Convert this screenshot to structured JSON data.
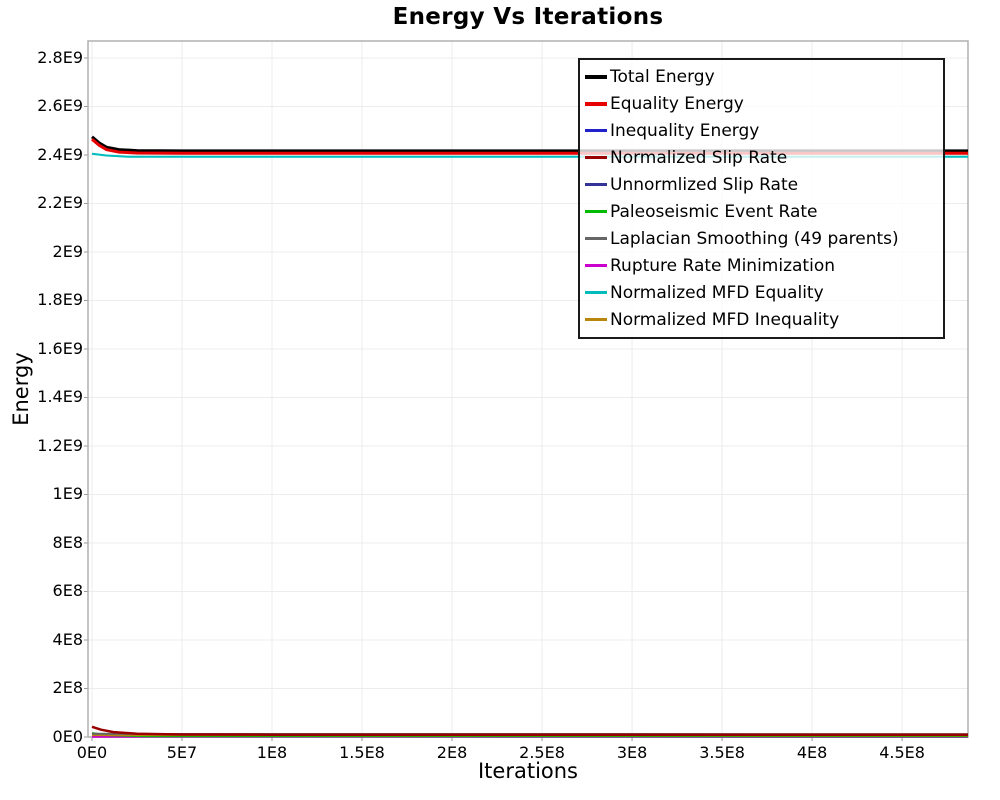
{
  "title": "Energy Vs Iterations",
  "x_axis": {
    "label": "Iterations"
  },
  "y_axis": {
    "label": "Energy"
  },
  "chart_data": {
    "type": "line",
    "title": "Energy Vs Iterations",
    "xlabel": "Iterations",
    "ylabel": "Energy",
    "xlim": [
      -2200000,
      486600000
    ],
    "ylim": [
      0,
      2870000000
    ],
    "grid": true,
    "legend_position": "top-right-inside",
    "legend_background": "rgba(255,255,255,0.78)",
    "x_ticks": {
      "values": [
        0,
        50000000,
        100000000,
        150000000,
        200000000,
        250000000,
        300000000,
        350000000,
        400000000,
        450000000
      ],
      "labels": [
        "0E0",
        "5E7",
        "1E8",
        "1.5E8",
        "2E8",
        "2.5E8",
        "3E8",
        "3.5E8",
        "4E8",
        "4.5E8"
      ]
    },
    "y_ticks": {
      "values": [
        0,
        200000000,
        400000000,
        600000000,
        800000000,
        1000000000,
        1200000000,
        1400000000,
        1600000000,
        1800000000,
        2000000000,
        2200000000,
        2400000000,
        2600000000,
        2800000000
      ],
      "labels": [
        "0E0",
        "2E8",
        "4E8",
        "6E8",
        "8E8",
        "1E9",
        "1.2E9",
        "1.4E9",
        "1.6E9",
        "1.8E9",
        "2E9",
        "2.2E9",
        "2.4E9",
        "2.6E9",
        "2.8E9"
      ]
    },
    "series": [
      {
        "name": "Total Energy",
        "slug": "total-energy",
        "color": "#000000",
        "width": 3,
        "legend_stroke": 4,
        "points": [
          [
            0,
            2475000000
          ],
          [
            4000000,
            2450000000
          ],
          [
            8000000,
            2432000000
          ],
          [
            15000000,
            2422000000
          ],
          [
            25000000,
            2418000000
          ],
          [
            50000000,
            2417000000
          ],
          [
            486600000,
            2417000000
          ]
        ]
      },
      {
        "name": "Equality Energy",
        "slug": "equality-energy",
        "color": "#e60000",
        "width": 3,
        "legend_stroke": 4,
        "points": [
          [
            0,
            2465000000
          ],
          [
            4000000,
            2440000000
          ],
          [
            8000000,
            2422000000
          ],
          [
            15000000,
            2412000000
          ],
          [
            25000000,
            2408000000
          ],
          [
            50000000,
            2407000000
          ],
          [
            486600000,
            2407000000
          ]
        ]
      },
      {
        "name": "Inequality Energy",
        "slug": "inequality-energy",
        "color": "#2222cc",
        "width": 2,
        "legend_stroke": 3,
        "points": [
          [
            0,
            1500000
          ],
          [
            486600000,
            1000000
          ]
        ]
      },
      {
        "name": "Normalized Slip Rate",
        "slug": "normalized-slip-rate",
        "color": "#990000",
        "width": 2.5,
        "legend_stroke": 3,
        "points": [
          [
            0,
            42000000
          ],
          [
            5000000,
            30000000
          ],
          [
            12000000,
            20000000
          ],
          [
            25000000,
            13500000
          ],
          [
            50000000,
            10500000
          ],
          [
            100000000,
            9500000
          ],
          [
            486600000,
            9200000
          ]
        ]
      },
      {
        "name": "Unnormlized Slip Rate",
        "slug": "unnormlized-slip-rate",
        "color": "#333399",
        "width": 2,
        "legend_stroke": 2.5,
        "points": [
          [
            0,
            2000000
          ],
          [
            486600000,
            1500000
          ]
        ]
      },
      {
        "name": "Paleoseismic Event Rate",
        "slug": "paleoseismic-event-rate",
        "color": "#00bb00",
        "width": 2,
        "legend_stroke": 2.5,
        "points": [
          [
            0,
            16000000
          ],
          [
            10000000,
            7000000
          ],
          [
            30000000,
            3500000
          ],
          [
            486600000,
            3000000
          ]
        ]
      },
      {
        "name": "Laplacian Smoothing (49 parents)",
        "slug": "laplacian-smoothing",
        "color": "#666666",
        "width": 2,
        "legend_stroke": 2.5,
        "points": [
          [
            0,
            13500000
          ],
          [
            30000000,
            12500000
          ],
          [
            486600000,
            12000000
          ]
        ]
      },
      {
        "name": "Rupture Rate Minimization",
        "slug": "rupture-rate-minimization",
        "color": "#cc00cc",
        "width": 2,
        "legend_stroke": 2.5,
        "points": [
          [
            0,
            1000000
          ],
          [
            486600000,
            800000
          ]
        ]
      },
      {
        "name": "Normalized MFD Equality",
        "slug": "normalized-mfd-equality",
        "color": "#00bcbc",
        "width": 2,
        "legend_stroke": 2.5,
        "points": [
          [
            0,
            2405000000
          ],
          [
            8000000,
            2398000000
          ],
          [
            20000000,
            2393000000
          ],
          [
            486600000,
            2393000000
          ]
        ]
      },
      {
        "name": "Normalized MFD Inequality",
        "slug": "normalized-mfd-inequality",
        "color": "#b8860b",
        "width": 2,
        "legend_stroke": 2.5,
        "points": [
          [
            0,
            8000000
          ],
          [
            486600000,
            6500000
          ]
        ]
      }
    ],
    "draw_order": [
      2,
      4,
      7,
      5,
      9,
      6,
      3,
      8,
      0,
      1
    ]
  }
}
